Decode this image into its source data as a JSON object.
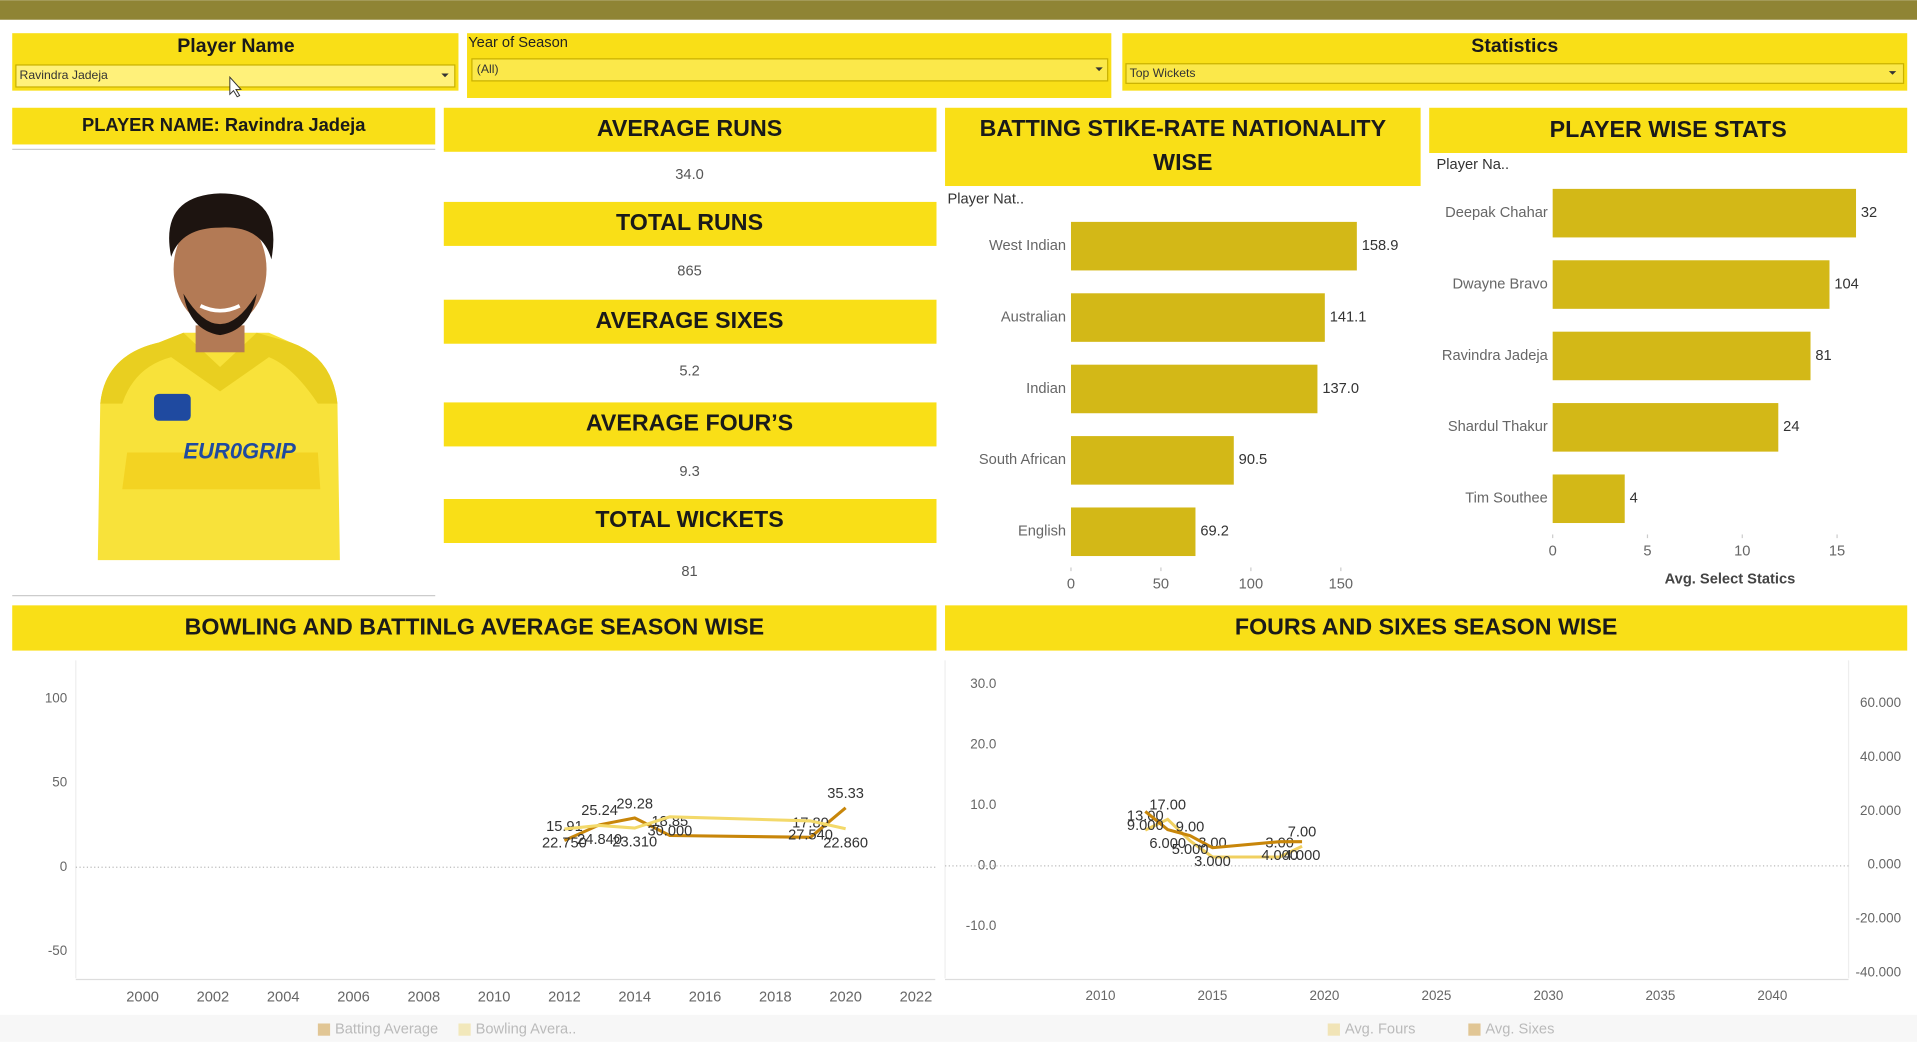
{
  "filters": [
    {
      "label": "Player Name",
      "value": "Ravindra Jadeja"
    },
    {
      "label": "Year of Season",
      "value": "(All)"
    },
    {
      "label": "Statistics",
      "value": "Top Wickets"
    }
  ],
  "player": {
    "title": "PLAYER NAME: Ravindra Jadeja"
  },
  "kpis": [
    {
      "title": "AVERAGE RUNS",
      "value": "34.0"
    },
    {
      "title": "TOTAL RUNS",
      "value": "865"
    },
    {
      "title": "AVERAGE SIXES",
      "value": "5.2"
    },
    {
      "title": "AVERAGE FOUR’S",
      "value": "9.3"
    },
    {
      "title": "TOTAL WICKETS",
      "value": "81"
    }
  ],
  "chart_data": [
    {
      "type": "bar",
      "orientation": "horizontal",
      "title": "BATTING STIKE-RATE NATIONALITY WISE",
      "category_label": "Player Nat..",
      "categories": [
        "West Indian",
        "Australian",
        "Indian",
        "South African",
        "English"
      ],
      "values": [
        158.9,
        141.1,
        137.0,
        90.5,
        69.2
      ],
      "value_labels": [
        "158.9",
        "141.1",
        "137.0",
        "90.5",
        "69.2"
      ],
      "color": "#d3b817",
      "xlim": [
        0,
        193
      ],
      "xticks": [
        0,
        50,
        100,
        150
      ]
    },
    {
      "type": "bar",
      "orientation": "horizontal",
      "title": "PLAYER WISE STATS",
      "category_label": "Player Na..",
      "x_label": "Avg. Select Statics",
      "categories": [
        "Deepak Chahar",
        "Dwayne Bravo",
        "Ravindra Jadeja",
        "Shardul Thakur",
        "Tim Southee"
      ],
      "values": [
        16.0,
        14.6,
        13.6,
        11.9,
        3.8
      ],
      "label_values": [
        32,
        104,
        81,
        24,
        4
      ],
      "color": "#d3b817",
      "xlim": [
        0,
        18.7
      ],
      "xticks": [
        0,
        5,
        10,
        15
      ]
    },
    {
      "type": "line",
      "title": "BOWLING AND BATTINLG AVERAGE SEASON WISE",
      "x": [
        2012,
        2013,
        2014,
        2015,
        2019,
        2020
      ],
      "series": [
        {
          "name": "Batting Average",
          "color": "#c8860a",
          "values": [
            15.91,
            25.24,
            29.28,
            18.85,
            17.8,
            35.33
          ],
          "value_labels": [
            "15.91",
            "25.24",
            "29.28",
            "18.85",
            "17.80",
            "35.33"
          ]
        },
        {
          "name": "Bowling Avera..",
          "color": "#f3d96a",
          "values": [
            22.75,
            24.84,
            23.31,
            30.0,
            27.54,
            22.86
          ],
          "value_labels": [
            "22.750",
            "24.840",
            "23.310",
            "30.000",
            "27.540",
            "22.860"
          ]
        }
      ],
      "xlim": [
        1998.1,
        2022.55
      ],
      "xticks": [
        2000,
        2002,
        2004,
        2006,
        2008,
        2010,
        2012,
        2014,
        2016,
        2018,
        2020,
        2022
      ],
      "ylim": [
        -66,
        123
      ],
      "yticks": [
        -50,
        0,
        50,
        100
      ]
    },
    {
      "type": "line",
      "title": "FOURS AND SIXES SEASON WISE",
      "x": [
        2012,
        2013,
        2014,
        2015,
        2018,
        2019
      ],
      "series": [
        {
          "name": "Avg. Fours",
          "color": "#f0d060",
          "axis": "y2",
          "values": [
            13,
            17,
            9,
            3,
            3,
            7
          ],
          "value_labels": [
            "13.00",
            "17.00",
            "9.00",
            "3.00",
            "3.00",
            "7.00"
          ]
        },
        {
          "name": "Avg. Sixes",
          "color": "#c8860a",
          "values": [
            9,
            6,
            5,
            3,
            4,
            4
          ],
          "value_labels": [
            "9.000",
            "6.000",
            "5.000",
            "3.000",
            "4.000",
            "4.000"
          ]
        }
      ],
      "xlim": [
        2003.06,
        2043.4
      ],
      "xticks": [
        2010,
        2015,
        2020,
        2025,
        2030,
        2035,
        2040
      ],
      "ylim": [
        -18.6,
        34
      ],
      "yticks": [
        {
          "value": -10,
          "label": "-10.0"
        },
        {
          "value": 0,
          "label": "0.0"
        },
        {
          "value": 10,
          "label": "10.0"
        },
        {
          "value": 20,
          "label": "20.0"
        },
        {
          "value": 30,
          "label": "30.0"
        }
      ],
      "y2lim": [
        -42,
        76
      ],
      "y2ticks": [
        {
          "value": -40,
          "label": "-40.000"
        },
        {
          "value": -20,
          "label": "-20.000"
        },
        {
          "value": 0,
          "label": "0.000"
        },
        {
          "value": 20,
          "label": "20.000"
        },
        {
          "value": 40,
          "label": "40.000"
        },
        {
          "value": 60,
          "label": "60.000"
        }
      ]
    }
  ]
}
